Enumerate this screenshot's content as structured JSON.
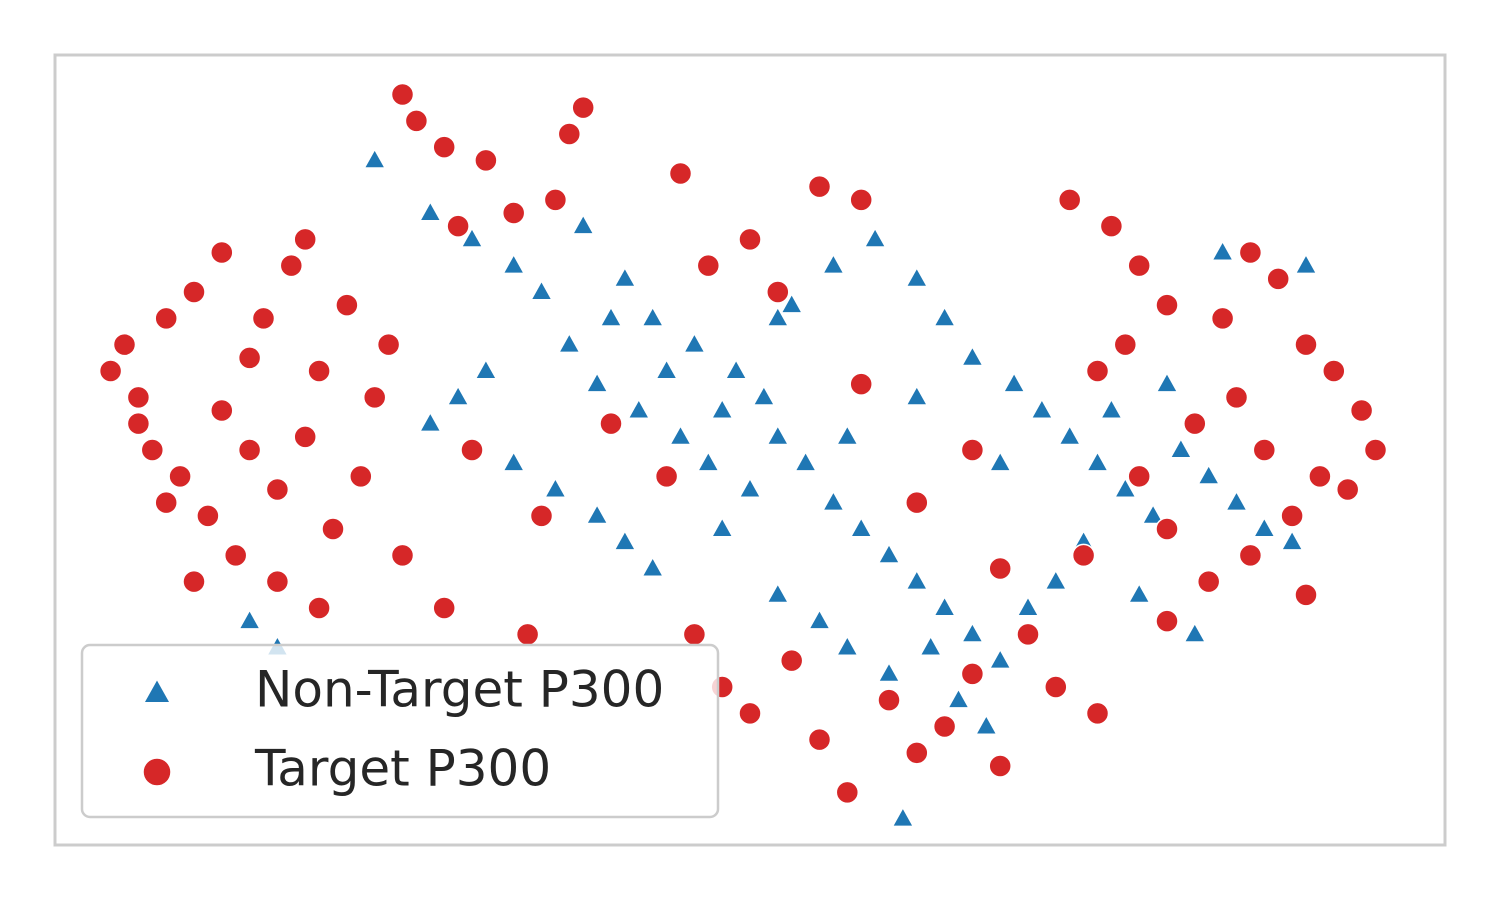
{
  "chart_data": {
    "type": "scatter",
    "xlim": [
      0,
      100
    ],
    "ylim": [
      0,
      60
    ],
    "legend": "lower left",
    "series": [
      {
        "name": "Non-Target P300",
        "color": "#1f77b4",
        "marker": "triangle",
        "x": [
          23,
          27,
          30,
          33,
          35,
          38,
          41,
          43,
          46,
          49,
          51,
          53,
          56,
          59,
          62,
          64,
          66,
          69,
          71,
          73,
          75,
          77,
          79,
          81,
          83,
          85,
          87,
          89,
          37,
          39,
          42,
          45,
          47,
          50,
          52,
          54,
          56,
          58,
          60,
          62,
          64,
          66,
          68,
          70,
          72,
          74,
          31,
          29,
          27,
          33,
          36,
          39,
          41,
          43,
          48,
          52,
          55,
          57,
          60,
          63,
          65,
          67,
          61,
          52,
          48,
          44,
          40,
          57,
          62,
          68,
          76,
          80,
          14,
          16,
          84,
          90,
          78,
          82
        ],
        "values": [
          52,
          48,
          46,
          44,
          42,
          47,
          43,
          40,
          38,
          36,
          34,
          41,
          44,
          46,
          43,
          40,
          37,
          35,
          33,
          31,
          29,
          27,
          25,
          30,
          28,
          26,
          24,
          23,
          38,
          35,
          33,
          31,
          29,
          27,
          31,
          29,
          26,
          24,
          22,
          20,
          18,
          16,
          14,
          18,
          20,
          23,
          36,
          34,
          32,
          29,
          27,
          25,
          23,
          21,
          24,
          19,
          17,
          15,
          13,
          15,
          11,
          9,
          2,
          40,
          33,
          36,
          40,
          31,
          34,
          29,
          33,
          35,
          17,
          15,
          45,
          44,
          19,
          16
        ]
      },
      {
        "name": "Target P300",
        "color": "#d62728",
        "marker": "circle",
        "x": [
          5,
          6,
          4,
          8,
          10,
          7,
          9,
          12,
          14,
          11,
          13,
          16,
          18,
          15,
          17,
          19,
          20,
          22,
          21,
          23,
          10,
          8,
          6,
          12,
          16,
          19,
          24,
          25,
          14,
          18,
          25,
          26,
          28,
          31,
          37,
          38,
          33,
          36,
          29,
          45,
          50,
          55,
          58,
          47,
          52,
          73,
          76,
          78,
          80,
          84,
          86,
          88,
          90,
          92,
          94,
          95,
          91,
          89,
          86,
          83,
          80,
          78,
          82,
          85,
          87,
          93,
          75,
          77,
          74,
          90,
          46,
          48,
          50,
          53,
          55,
          57,
          60,
          62,
          64,
          66,
          68,
          70,
          72,
          75,
          80,
          30,
          35,
          40,
          44,
          58,
          62,
          66,
          28,
          34,
          68
        ],
        "values": [
          38,
          34,
          36,
          40,
          42,
          30,
          28,
          33,
          37,
          25,
          22,
          27,
          31,
          40,
          44,
          36,
          24,
          28,
          41,
          34,
          20,
          26,
          32,
          45,
          20,
          18,
          38,
          22,
          30,
          46,
          57,
          55,
          53,
          52,
          54,
          56,
          48,
          49,
          47,
          51,
          46,
          50,
          49,
          44,
          42,
          49,
          47,
          44,
          41,
          40,
          45,
          43,
          38,
          36,
          33,
          30,
          28,
          25,
          22,
          20,
          24,
          28,
          32,
          34,
          30,
          27,
          36,
          38,
          22,
          19,
          16,
          12,
          10,
          14,
          8,
          4,
          11,
          7,
          9,
          13,
          6,
          16,
          12,
          10,
          17,
          30,
          25,
          32,
          28,
          35,
          26,
          30,
          18,
          16,
          21
        ]
      }
    ]
  }
}
